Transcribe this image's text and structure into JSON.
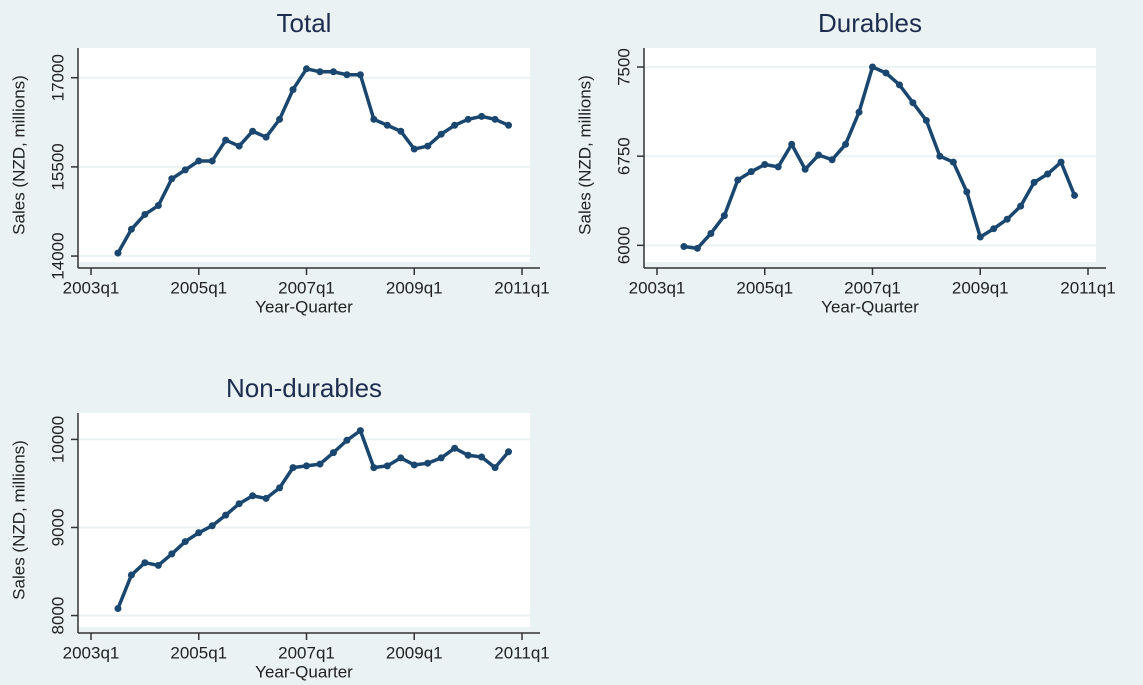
{
  "chart_data": [
    {
      "type": "line",
      "title": "Total",
      "xlabel": "Year-Quarter",
      "ylabel": "Sales (NZD, millions)",
      "color": "#1a476f",
      "grid": true,
      "x": [
        "2003q3",
        "2003q4",
        "2004q1",
        "2004q2",
        "2004q3",
        "2004q4",
        "2005q1",
        "2005q2",
        "2005q3",
        "2005q4",
        "2006q1",
        "2006q2",
        "2006q3",
        "2006q4",
        "2007q1",
        "2007q2",
        "2007q3",
        "2007q4",
        "2008q1",
        "2008q2",
        "2008q3",
        "2008q4",
        "2009q1",
        "2009q2",
        "2009q3",
        "2009q4",
        "2010q1",
        "2010q2",
        "2010q3",
        "2010q4"
      ],
      "values": [
        14050,
        14450,
        14700,
        14850,
        15300,
        15450,
        15600,
        15600,
        15950,
        15850,
        16100,
        16000,
        16300,
        16800,
        17150,
        17100,
        17100,
        17050,
        17050,
        16300,
        16200,
        16100,
        15800,
        15850,
        16050,
        16200,
        16300,
        16350,
        16300,
        16200
      ],
      "xlim": [
        "2003q1",
        "2011q1"
      ],
      "xticks": [
        "2003q1",
        "2005q1",
        "2007q1",
        "2009q1",
        "2011q1"
      ],
      "ylim": [
        13900,
        17500
      ],
      "yticks": [
        14000,
        15500,
        17000
      ]
    },
    {
      "type": "line",
      "title": "Durables",
      "xlabel": "Year-Quarter",
      "ylabel": "Sales (NZD, millions)",
      "color": "#1a476f",
      "grid": true,
      "x": [
        "2003q3",
        "2003q4",
        "2004q1",
        "2004q2",
        "2004q3",
        "2004q4",
        "2005q1",
        "2005q2",
        "2005q3",
        "2005q4",
        "2006q1",
        "2006q2",
        "2006q3",
        "2006q4",
        "2007q1",
        "2007q2",
        "2007q3",
        "2007q4",
        "2008q1",
        "2008q2",
        "2008q3",
        "2008q4",
        "2009q1",
        "2009q2",
        "2009q3",
        "2009q4",
        "2010q1",
        "2010q2",
        "2010q3",
        "2010q4"
      ],
      "values": [
        5990,
        5975,
        6100,
        6250,
        6550,
        6620,
        6680,
        6660,
        6850,
        6640,
        6760,
        6720,
        6850,
        7120,
        7500,
        7450,
        7350,
        7200,
        7050,
        6750,
        6700,
        6450,
        6070,
        6140,
        6220,
        6330,
        6530,
        6600,
        6700,
        6420
      ],
      "xlim": [
        "2003q1",
        "2011q1"
      ],
      "xticks": [
        "2003q1",
        "2005q1",
        "2007q1",
        "2009q1",
        "2011q1"
      ],
      "ylim": [
        5860,
        7660
      ],
      "yticks": [
        6000,
        6750,
        7500
      ]
    },
    {
      "type": "line",
      "title": "Non-durables",
      "xlabel": "Year-Quarter",
      "ylabel": "Sales (NZD, millions)",
      "color": "#1a476f",
      "grid": true,
      "x": [
        "2003q3",
        "2003q4",
        "2004q1",
        "2004q2",
        "2004q3",
        "2004q4",
        "2005q1",
        "2005q2",
        "2005q3",
        "2005q4",
        "2006q1",
        "2006q2",
        "2006q3",
        "2006q4",
        "2007q1",
        "2007q2",
        "2007q3",
        "2007q4",
        "2008q1",
        "2008q2",
        "2008q3",
        "2008q4",
        "2009q1",
        "2009q2",
        "2009q3",
        "2009q4",
        "2010q1",
        "2010q2",
        "2010q3",
        "2010q4"
      ],
      "values": [
        8080,
        8460,
        8600,
        8570,
        8700,
        8840,
        8940,
        9020,
        9140,
        9270,
        9360,
        9330,
        9450,
        9680,
        9700,
        9720,
        9850,
        9990,
        10100,
        9680,
        9700,
        9790,
        9710,
        9730,
        9790,
        9900,
        9820,
        9800,
        9680,
        9860
      ],
      "xlim": [
        "2003q1",
        "2011q1"
      ],
      "xticks": [
        "2003q1",
        "2005q1",
        "2007q1",
        "2009q1",
        "2011q1"
      ],
      "ylim": [
        7870,
        10300
      ],
      "yticks": [
        8000,
        9000,
        10000
      ]
    }
  ]
}
